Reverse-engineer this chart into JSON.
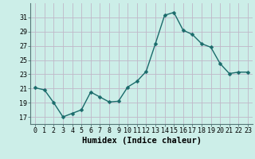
{
  "x": [
    0,
    1,
    2,
    3,
    4,
    5,
    6,
    7,
    8,
    9,
    10,
    11,
    12,
    13,
    14,
    15,
    16,
    17,
    18,
    19,
    20,
    21,
    22,
    23
  ],
  "y": [
    21.1,
    20.8,
    19.0,
    17.0,
    17.5,
    18.0,
    20.5,
    19.8,
    19.1,
    19.2,
    21.2,
    22.0,
    23.4,
    27.3,
    31.3,
    31.7,
    29.2,
    28.6,
    27.3,
    26.8,
    24.5,
    23.1,
    23.3,
    23.3
  ],
  "line_color": "#1a6b6b",
  "marker_color": "#1a6b6b",
  "bg_color": "#cceee8",
  "grid_color": "#c0b8c8",
  "xlabel": "Humidex (Indice chaleur)",
  "ylim": [
    16,
    33
  ],
  "yticks": [
    17,
    19,
    21,
    23,
    25,
    27,
    29,
    31
  ],
  "xticks": [
    0,
    1,
    2,
    3,
    4,
    5,
    6,
    7,
    8,
    9,
    10,
    11,
    12,
    13,
    14,
    15,
    16,
    17,
    18,
    19,
    20,
    21,
    22,
    23
  ],
  "xlabel_fontsize": 7.5,
  "tick_fontsize": 6,
  "marker_size": 2.5,
  "line_width": 1.0
}
